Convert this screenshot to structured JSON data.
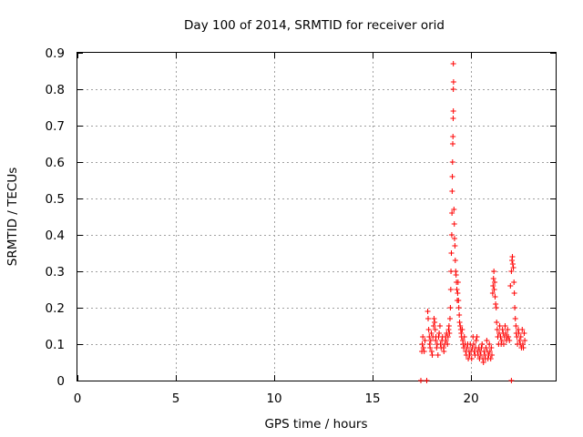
{
  "chart_data": {
    "type": "scatter",
    "title": "Day 100 of 2014, SRMTID for receiver orid",
    "xlabel": "GPS time / hours",
    "ylabel": "SRMTID / TECUs",
    "xlim": [
      0,
      24.3
    ],
    "ylim": [
      0,
      0.9
    ],
    "xticks": [
      0,
      5,
      10,
      15,
      20
    ],
    "xtick_labels": [
      "0",
      "5",
      "10",
      "15",
      "20"
    ],
    "yticks": [
      0,
      0.1,
      0.2,
      0.3,
      0.4,
      0.5,
      0.6,
      0.7,
      0.8,
      0.9
    ],
    "ytick_labels": [
      "0",
      "0.1",
      "0.2",
      "0.3",
      "0.4",
      "0.5",
      "0.6",
      "0.7",
      "0.8",
      "0.9"
    ],
    "grid": true,
    "marker": "+",
    "series": [
      {
        "name": "SRMTID",
        "color": "#ff0000",
        "points": [
          [
            17.45,
            0.0
          ],
          [
            17.75,
            0.0
          ],
          [
            22.05,
            0.0
          ],
          [
            17.5,
            0.08
          ],
          [
            17.52,
            0.1
          ],
          [
            17.55,
            0.12
          ],
          [
            17.58,
            0.09
          ],
          [
            17.62,
            0.08
          ],
          [
            17.66,
            0.11
          ],
          [
            17.8,
            0.19
          ],
          [
            17.82,
            0.17
          ],
          [
            17.85,
            0.14
          ],
          [
            17.88,
            0.12
          ],
          [
            17.9,
            0.1
          ],
          [
            17.92,
            0.09
          ],
          [
            17.95,
            0.11
          ],
          [
            17.98,
            0.13
          ],
          [
            18.0,
            0.08
          ],
          [
            18.03,
            0.07
          ],
          [
            18.06,
            0.12
          ],
          [
            18.1,
            0.15
          ],
          [
            18.12,
            0.17
          ],
          [
            18.15,
            0.16
          ],
          [
            18.18,
            0.14
          ],
          [
            18.2,
            0.11
          ],
          [
            18.22,
            0.12
          ],
          [
            18.25,
            0.09
          ],
          [
            18.28,
            0.1
          ],
          [
            18.32,
            0.07
          ],
          [
            18.35,
            0.12
          ],
          [
            18.38,
            0.13
          ],
          [
            18.42,
            0.15
          ],
          [
            18.45,
            0.1
          ],
          [
            18.48,
            0.09
          ],
          [
            18.52,
            0.11
          ],
          [
            18.55,
            0.12
          ],
          [
            18.6,
            0.09
          ],
          [
            18.62,
            0.08
          ],
          [
            18.66,
            0.1
          ],
          [
            18.7,
            0.12
          ],
          [
            18.73,
            0.11
          ],
          [
            18.76,
            0.13
          ],
          [
            18.8,
            0.1
          ],
          [
            18.83,
            0.12
          ],
          [
            18.86,
            0.14
          ],
          [
            18.88,
            0.15
          ],
          [
            18.9,
            0.13
          ],
          [
            18.93,
            0.17
          ],
          [
            18.95,
            0.2
          ],
          [
            18.97,
            0.25
          ],
          [
            18.98,
            0.3
          ],
          [
            19.0,
            0.35
          ],
          [
            19.02,
            0.4
          ],
          [
            19.03,
            0.46
          ],
          [
            19.04,
            0.52
          ],
          [
            19.05,
            0.56
          ],
          [
            19.06,
            0.6
          ],
          [
            19.07,
            0.65
          ],
          [
            19.08,
            0.67
          ],
          [
            19.09,
            0.72
          ],
          [
            19.1,
            0.74
          ],
          [
            19.1,
            0.8
          ],
          [
            19.11,
            0.82
          ],
          [
            19.1,
            0.87
          ],
          [
            19.13,
            0.47
          ],
          [
            19.15,
            0.43
          ],
          [
            19.16,
            0.39
          ],
          [
            19.18,
            0.37
          ],
          [
            19.2,
            0.33
          ],
          [
            19.22,
            0.3
          ],
          [
            19.24,
            0.29
          ],
          [
            19.26,
            0.27
          ],
          [
            19.28,
            0.25
          ],
          [
            19.3,
            0.22
          ],
          [
            19.32,
            0.24
          ],
          [
            19.34,
            0.27
          ],
          [
            19.36,
            0.22
          ],
          [
            19.38,
            0.2
          ],
          [
            19.4,
            0.18
          ],
          [
            19.42,
            0.16
          ],
          [
            19.45,
            0.15
          ],
          [
            19.48,
            0.14
          ],
          [
            19.5,
            0.13
          ],
          [
            19.52,
            0.12
          ],
          [
            19.55,
            0.14
          ],
          [
            19.58,
            0.11
          ],
          [
            19.6,
            0.1
          ],
          [
            19.63,
            0.09
          ],
          [
            19.66,
            0.12
          ],
          [
            19.7,
            0.1
          ],
          [
            19.73,
            0.08
          ],
          [
            19.76,
            0.07
          ],
          [
            19.8,
            0.09
          ],
          [
            19.83,
            0.1
          ],
          [
            19.86,
            0.06
          ],
          [
            19.9,
            0.08
          ],
          [
            19.93,
            0.07
          ],
          [
            19.96,
            0.1
          ],
          [
            20.0,
            0.08
          ],
          [
            20.03,
            0.06
          ],
          [
            20.06,
            0.09
          ],
          [
            20.1,
            0.12
          ],
          [
            20.13,
            0.1
          ],
          [
            20.16,
            0.08
          ],
          [
            20.2,
            0.07
          ],
          [
            20.23,
            0.09
          ],
          [
            20.26,
            0.11
          ],
          [
            20.3,
            0.12
          ],
          [
            20.33,
            0.08
          ],
          [
            20.36,
            0.07
          ],
          [
            20.4,
            0.09
          ],
          [
            20.43,
            0.06
          ],
          [
            20.46,
            0.08
          ],
          [
            20.5,
            0.07
          ],
          [
            20.53,
            0.09
          ],
          [
            20.56,
            0.1
          ],
          [
            20.6,
            0.06
          ],
          [
            20.63,
            0.05
          ],
          [
            20.66,
            0.08
          ],
          [
            20.7,
            0.07
          ],
          [
            20.73,
            0.06
          ],
          [
            20.76,
            0.09
          ],
          [
            20.8,
            0.11
          ],
          [
            20.83,
            0.08
          ],
          [
            20.86,
            0.06
          ],
          [
            20.9,
            0.07
          ],
          [
            20.93,
            0.1
          ],
          [
            20.96,
            0.08
          ],
          [
            21.0,
            0.06
          ],
          [
            21.03,
            0.09
          ],
          [
            21.06,
            0.07
          ],
          [
            21.1,
            0.24
          ],
          [
            21.12,
            0.26
          ],
          [
            21.14,
            0.28
          ],
          [
            21.16,
            0.3
          ],
          [
            21.18,
            0.25
          ],
          [
            21.2,
            0.27
          ],
          [
            21.22,
            0.23
          ],
          [
            21.25,
            0.21
          ],
          [
            21.28,
            0.2
          ],
          [
            21.3,
            0.16
          ],
          [
            21.33,
            0.14
          ],
          [
            21.36,
            0.12
          ],
          [
            21.4,
            0.1
          ],
          [
            21.43,
            0.13
          ],
          [
            21.46,
            0.15
          ],
          [
            21.5,
            0.12
          ],
          [
            21.53,
            0.1
          ],
          [
            21.56,
            0.11
          ],
          [
            21.6,
            0.14
          ],
          [
            21.63,
            0.13
          ],
          [
            21.66,
            0.1
          ],
          [
            21.7,
            0.12
          ],
          [
            21.73,
            0.15
          ],
          [
            21.76,
            0.13
          ],
          [
            21.8,
            0.11
          ],
          [
            21.83,
            0.12
          ],
          [
            21.86,
            0.14
          ],
          [
            21.9,
            0.12
          ],
          [
            21.95,
            0.11
          ],
          [
            22.0,
            0.26
          ],
          [
            22.05,
            0.3
          ],
          [
            22.08,
            0.33
          ],
          [
            22.1,
            0.34
          ],
          [
            22.12,
            0.32
          ],
          [
            22.15,
            0.31
          ],
          [
            22.18,
            0.27
          ],
          [
            22.2,
            0.24
          ],
          [
            22.22,
            0.2
          ],
          [
            22.25,
            0.17
          ],
          [
            22.28,
            0.15
          ],
          [
            22.3,
            0.13
          ],
          [
            22.33,
            0.12
          ],
          [
            22.36,
            0.1
          ],
          [
            22.4,
            0.14
          ],
          [
            22.43,
            0.13
          ],
          [
            22.46,
            0.11
          ],
          [
            22.5,
            0.1
          ],
          [
            22.53,
            0.12
          ],
          [
            22.56,
            0.09
          ],
          [
            22.6,
            0.14
          ],
          [
            22.63,
            0.1
          ],
          [
            22.66,
            0.09
          ],
          [
            22.7,
            0.13
          ],
          [
            22.73,
            0.11
          ]
        ]
      }
    ]
  }
}
